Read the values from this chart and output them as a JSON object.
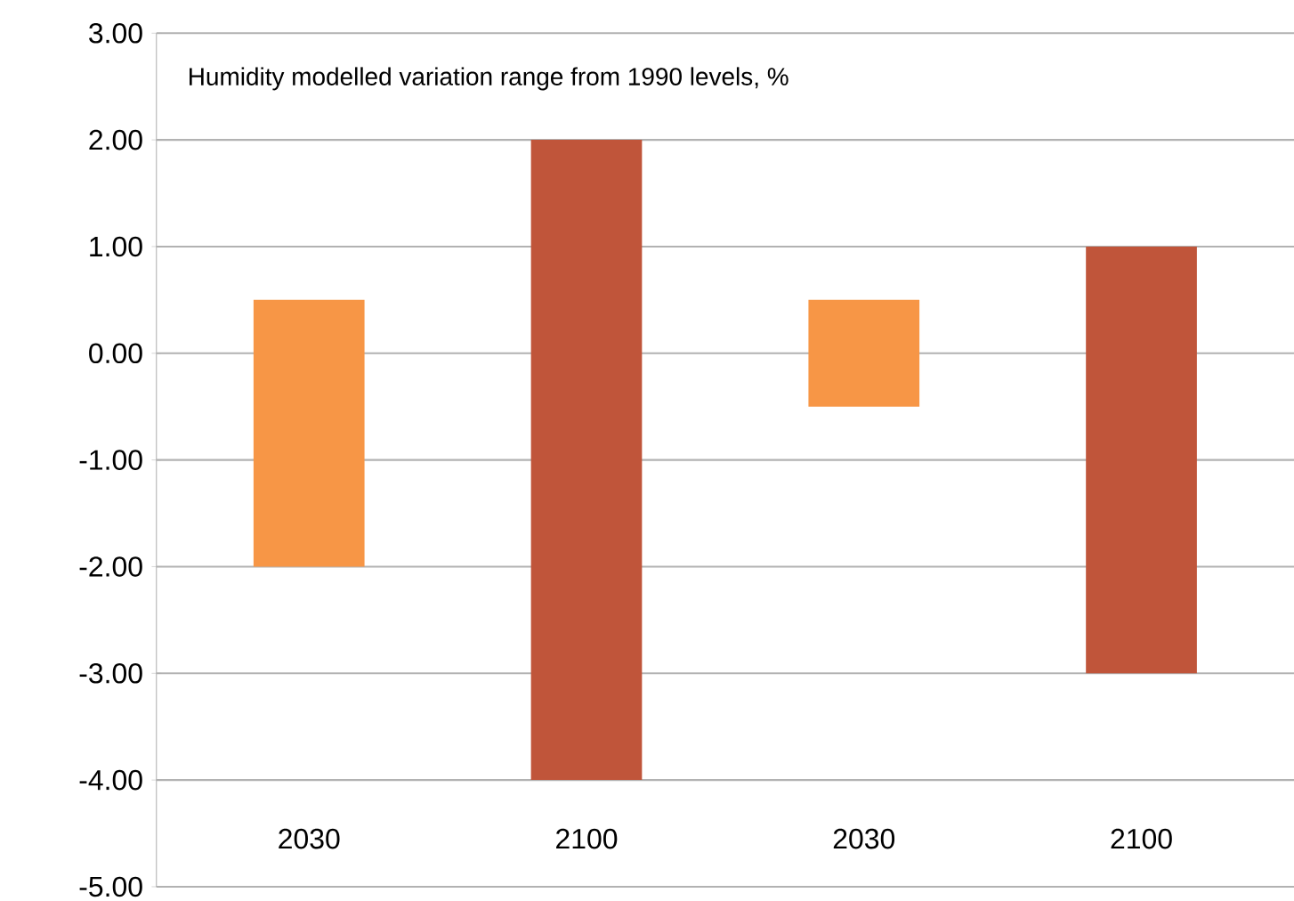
{
  "chart_data": {
    "type": "bar",
    "title": "Humidity modelled variation range from 1990 levels, %",
    "categories": [
      "2030",
      "2100",
      "2030",
      "2100"
    ],
    "base": [
      -2,
      -4,
      -0.5,
      -3
    ],
    "values": [
      2.5,
      6,
      1,
      4
    ],
    "colors": [
      "#f79646",
      "#c0553a",
      "#f79646",
      "#c0553a"
    ],
    "ylim": [
      -5,
      3
    ],
    "yticks": [
      {
        "value": 3,
        "label": "3.00"
      },
      {
        "value": 2,
        "label": "2.00"
      },
      {
        "value": 1,
        "label": "1.00"
      },
      {
        "value": 0,
        "label": "0.00"
      },
      {
        "value": -1,
        "label": "-1.00"
      },
      {
        "value": -2,
        "label": "-2.00"
      },
      {
        "value": -3,
        "label": "-3.00"
      },
      {
        "value": -4,
        "label": "-4.00"
      },
      {
        "value": -5,
        "label": "-5.00"
      }
    ],
    "grid": "y"
  }
}
